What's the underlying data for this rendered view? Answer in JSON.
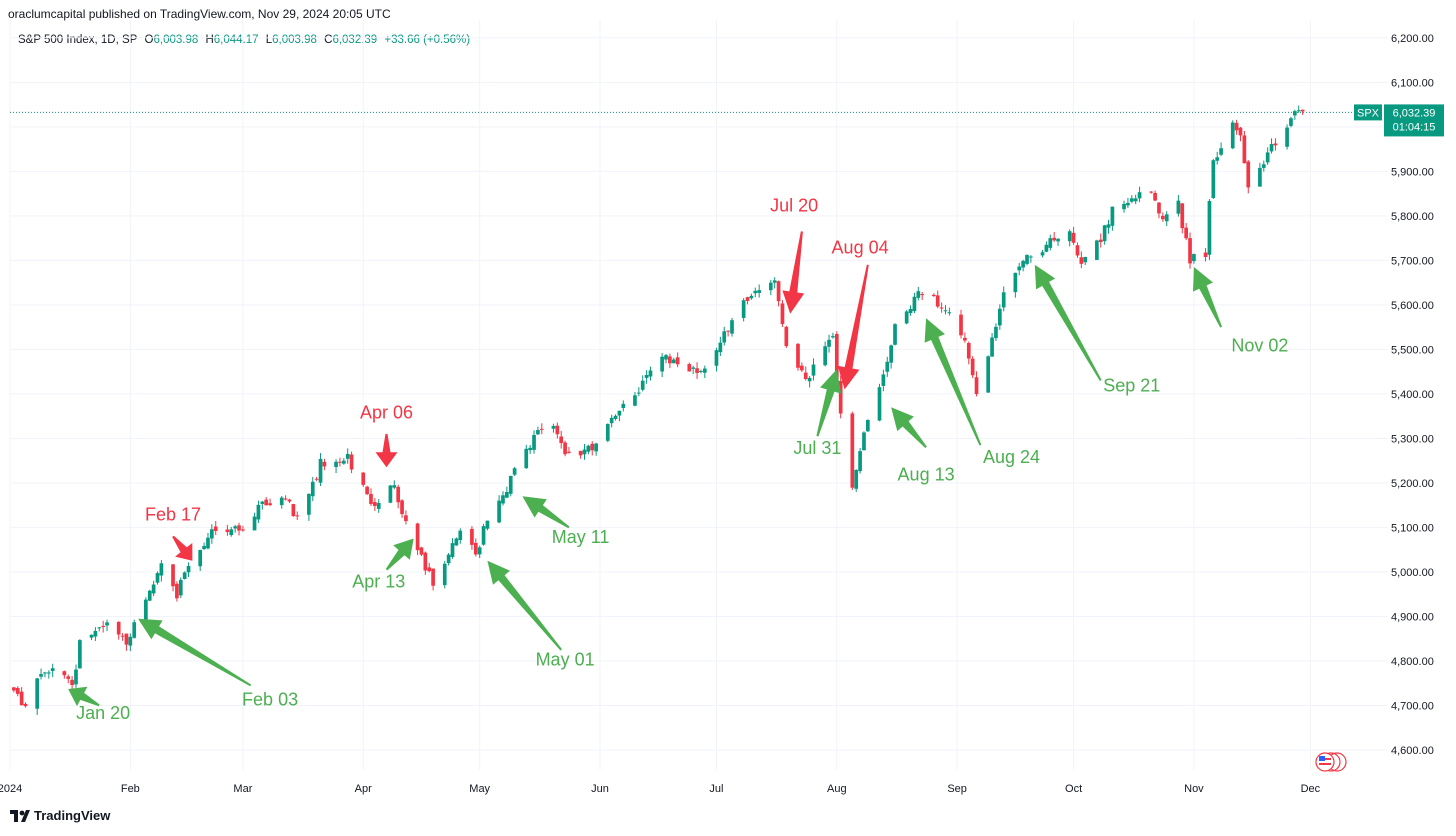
{
  "header": {
    "published": "oraclumcapital published on TradingView.com, Nov 29, 2024 20:05 UTC"
  },
  "legend": {
    "symbol": "S&P 500 Index, 1D, SP",
    "o_label": "O",
    "o_value": "6,003.98",
    "h_label": "H",
    "h_value": "6,044.17",
    "l_label": "L",
    "l_value": "6,003.98",
    "c_label": "C",
    "c_value": "6,032.39",
    "change": "+33.66 (+0.56%)"
  },
  "price_badge": {
    "ticker": "SPX",
    "price": "6,032.39",
    "countdown": "01:04:15"
  },
  "footer": {
    "brand": "TradingView"
  },
  "colors": {
    "up": "#089981",
    "down": "#f23645",
    "arrow_green": "#4caf50",
    "arrow_red": "#f23645",
    "grid": "#f0f3fa",
    "price_line": "#089981"
  },
  "chart_data": {
    "type": "candlestick",
    "title": "S&P 500 Index, 1D, SP",
    "y_ticks": [
      4600,
      4700,
      4800,
      4900,
      5000,
      5100,
      5200,
      5300,
      5400,
      5500,
      5600,
      5700,
      5800,
      5900,
      6000,
      6100,
      6200
    ],
    "y_tick_labels": [
      "4,600.00",
      "4,700.00",
      "4,800.00",
      "4,900.00",
      "5,000.00",
      "5,100.00",
      "5,200.00",
      "5,300.00",
      "5,400.00",
      "5,500.00",
      "5,600.00",
      "5,700.00",
      "5,800.00",
      "5,900.00",
      "6,000.00",
      "6,100.00",
      "6,200.00"
    ],
    "ylim": [
      4555,
      6240
    ],
    "x_ticks": [
      {
        "label": "2024",
        "date": "2024-01-01"
      },
      {
        "label": "Feb",
        "date": "2024-02-01"
      },
      {
        "label": "Mar",
        "date": "2024-03-01"
      },
      {
        "label": "Apr",
        "date": "2024-04-01"
      },
      {
        "label": "May",
        "date": "2024-05-01"
      },
      {
        "label": "Jun",
        "date": "2024-06-01"
      },
      {
        "label": "Jul",
        "date": "2024-07-01"
      },
      {
        "label": "Aug",
        "date": "2024-08-01"
      },
      {
        "label": "Sep",
        "date": "2024-09-01"
      },
      {
        "label": "Oct",
        "date": "2024-10-01"
      },
      {
        "label": "Nov",
        "date": "2024-11-01"
      },
      {
        "label": "Dec",
        "date": "2024-12-01"
      }
    ],
    "xlim": [
      "2024-01-01",
      "2024-12-21"
    ],
    "last_price": 6032.39,
    "close_path": [
      [
        "2024-01-02",
        4742
      ],
      [
        "2024-01-05",
        4697
      ],
      [
        "2024-01-10",
        4783
      ],
      [
        "2024-01-12",
        4783
      ],
      [
        "2024-01-17",
        4739
      ],
      [
        "2024-01-19",
        4839
      ],
      [
        "2024-01-24",
        4868
      ],
      [
        "2024-01-26",
        4890
      ],
      [
        "2024-01-31",
        4845
      ],
      [
        "2024-02-05",
        4942
      ],
      [
        "2024-02-09",
        5026
      ],
      [
        "2024-02-13",
        4953
      ],
      [
        "2024-02-16",
        5005
      ],
      [
        "2024-02-22",
        5087
      ],
      [
        "2024-02-29",
        5096
      ],
      [
        "2024-03-07",
        5157
      ],
      [
        "2024-03-12",
        5175
      ],
      [
        "2024-03-15",
        5117
      ],
      [
        "2024-03-21",
        5241
      ],
      [
        "2024-03-28",
        5254
      ],
      [
        "2024-04-04",
        5147
      ],
      [
        "2024-04-08",
        5202
      ],
      [
        "2024-04-12",
        5123
      ],
      [
        "2024-04-15",
        5061
      ],
      [
        "2024-04-19",
        4967
      ],
      [
        "2024-04-26",
        5099
      ],
      [
        "2024-04-30",
        5035
      ],
      [
        "2024-05-03",
        5128
      ],
      [
        "2024-05-08",
        5187
      ],
      [
        "2024-05-15",
        5308
      ],
      [
        "2024-05-21",
        5321
      ],
      [
        "2024-05-23",
        5267
      ],
      [
        "2024-05-31",
        5277
      ],
      [
        "2024-06-05",
        5354
      ],
      [
        "2024-06-12",
        5421
      ],
      [
        "2024-06-18",
        5487
      ],
      [
        "2024-06-24",
        5447
      ],
      [
        "2024-06-28",
        5460
      ],
      [
        "2024-07-03",
        5537
      ],
      [
        "2024-07-10",
        5633
      ],
      [
        "2024-07-16",
        5667
      ],
      [
        "2024-07-19",
        5505
      ],
      [
        "2024-07-24",
        5427
      ],
      [
        "2024-07-26",
        5459
      ],
      [
        "2024-07-31",
        5522
      ],
      [
        "2024-08-02",
        5346
      ],
      [
        "2024-08-05",
        5186
      ],
      [
        "2024-08-08",
        5319
      ],
      [
        "2024-08-13",
        5434
      ],
      [
        "2024-08-16",
        5554
      ],
      [
        "2024-08-20",
        5597
      ],
      [
        "2024-08-23",
        5634
      ],
      [
        "2024-08-29",
        5591
      ],
      [
        "2024-09-03",
        5528
      ],
      [
        "2024-09-06",
        5408
      ],
      [
        "2024-09-11",
        5554
      ],
      [
        "2024-09-13",
        5626
      ],
      [
        "2024-09-19",
        5713
      ],
      [
        "2024-09-24",
        5732
      ],
      [
        "2024-09-30",
        5762
      ],
      [
        "2024-10-03",
        5699
      ],
      [
        "2024-10-08",
        5751
      ],
      [
        "2024-10-11",
        5815
      ],
      [
        "2024-10-17",
        5841
      ],
      [
        "2024-10-21",
        5853
      ],
      [
        "2024-10-23",
        5797
      ],
      [
        "2024-10-28",
        5823
      ],
      [
        "2024-10-31",
        5705
      ],
      [
        "2024-11-04",
        5712
      ],
      [
        "2024-11-06",
        5929
      ],
      [
        "2024-11-11",
        6001
      ],
      [
        "2024-11-13",
        5985
      ],
      [
        "2024-11-15",
        5870
      ],
      [
        "2024-11-19",
        5916
      ],
      [
        "2024-11-22",
        5969
      ],
      [
        "2024-11-26",
        6021
      ],
      [
        "2024-11-29",
        6032
      ]
    ]
  },
  "annotations": [
    {
      "label": "Jan 20",
      "color": "green",
      "text_date": "2024-01-25",
      "text_price": 4670,
      "tail_date": "2024-01-24",
      "tail_price": 4700,
      "head_date": "2024-01-16",
      "head_price": 4737
    },
    {
      "label": "Feb 03",
      "color": "green",
      "text_date": "2024-03-08",
      "text_price": 4700,
      "tail_date": "2024-03-03",
      "tail_price": 4745,
      "head_date": "2024-02-03",
      "head_price": 4895
    },
    {
      "label": "Feb 17",
      "color": "red",
      "text_date": "2024-02-12",
      "text_price": 5115,
      "tail_date": "2024-02-12",
      "tail_price": 5080,
      "head_date": "2024-02-17",
      "head_price": 5025
    },
    {
      "label": "Apr 13",
      "color": "green",
      "text_date": "2024-04-05",
      "text_price": 4965,
      "tail_date": "2024-04-07",
      "tail_price": 5005,
      "head_date": "2024-04-14",
      "head_price": 5075
    },
    {
      "label": "Apr 06",
      "color": "red",
      "text_date": "2024-04-07",
      "text_price": 5345,
      "tail_date": "2024-04-07",
      "tail_price": 5310,
      "head_date": "2024-04-07",
      "head_price": 5235
    },
    {
      "label": "May 01",
      "color": "green",
      "text_date": "2024-05-23",
      "text_price": 4790,
      "tail_date": "2024-05-22",
      "tail_price": 4825,
      "head_date": "2024-05-03",
      "head_price": 5025
    },
    {
      "label": "May 11",
      "color": "green",
      "text_date": "2024-05-27",
      "text_price": 5065,
      "tail_date": "2024-05-24",
      "tail_price": 5100,
      "head_date": "2024-05-12",
      "head_price": 5170
    },
    {
      "label": "Jul 20",
      "color": "red",
      "text_date": "2024-07-21",
      "text_price": 5810,
      "tail_date": "2024-07-23",
      "tail_price": 5765,
      "head_date": "2024-07-20",
      "head_price": 5580
    },
    {
      "label": "Aug 04",
      "color": "red",
      "text_date": "2024-08-07",
      "text_price": 5715,
      "tail_date": "2024-08-09",
      "tail_price": 5690,
      "head_date": "2024-08-03",
      "head_price": 5410
    },
    {
      "label": "Jul 31",
      "color": "green",
      "text_date": "2024-07-27",
      "text_price": 5265,
      "tail_date": "2024-07-27",
      "tail_price": 5305,
      "head_date": "2024-08-01",
      "head_price": 5455
    },
    {
      "label": "Aug 13",
      "color": "green",
      "text_date": "2024-08-24",
      "text_price": 5205,
      "tail_date": "2024-08-24",
      "tail_price": 5280,
      "head_date": "2024-08-15",
      "head_price": 5370
    },
    {
      "label": "Aug 24",
      "color": "green",
      "text_date": "2024-09-15",
      "text_price": 5245,
      "tail_date": "2024-09-07",
      "tail_price": 5285,
      "head_date": "2024-08-24",
      "head_price": 5570
    },
    {
      "label": "Sep 21",
      "color": "green",
      "text_date": "2024-10-16",
      "text_price": 5405,
      "tail_date": "2024-10-08",
      "tail_price": 5430,
      "head_date": "2024-09-21",
      "head_price": 5690
    },
    {
      "label": "Nov 02",
      "color": "green",
      "text_date": "2024-11-18",
      "text_price": 5495,
      "tail_date": "2024-11-08",
      "tail_price": 5550,
      "head_date": "2024-11-01",
      "head_price": 5685
    }
  ]
}
